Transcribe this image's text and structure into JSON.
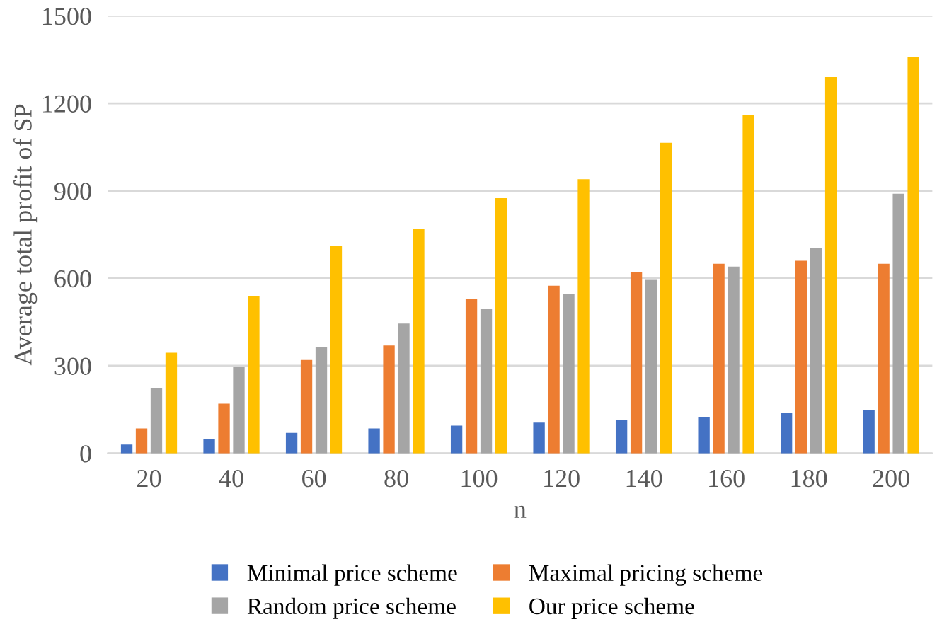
{
  "chart_data": {
    "type": "bar",
    "xlabel": "n",
    "ylabel": "Average total profit of SP",
    "categories": [
      "20",
      "40",
      "60",
      "80",
      "100",
      "120",
      "140",
      "160",
      "180",
      "200"
    ],
    "series": [
      {
        "name": "Minimal price scheme",
        "color": "#4472c4",
        "values": [
          30,
          50,
          70,
          85,
          95,
          105,
          115,
          125,
          140,
          148
        ]
      },
      {
        "name": "Maximal pricing scheme",
        "color": "#ed7d31",
        "values": [
          85,
          170,
          320,
          370,
          530,
          575,
          620,
          650,
          660,
          650
        ]
      },
      {
        "name": "Random price scheme",
        "color": "#a5a5a5",
        "values": [
          225,
          295,
          365,
          445,
          495,
          545,
          595,
          640,
          705,
          890
        ]
      },
      {
        "name": "Our price scheme",
        "color": "#ffc000",
        "values": [
          345,
          540,
          710,
          770,
          875,
          940,
          1065,
          1160,
          1290,
          1360
        ]
      }
    ],
    "ylim": [
      0,
      1500
    ],
    "yticks": [
      0,
      300,
      600,
      900,
      1200,
      1500
    ],
    "grid": "y",
    "legend": "bottom"
  }
}
